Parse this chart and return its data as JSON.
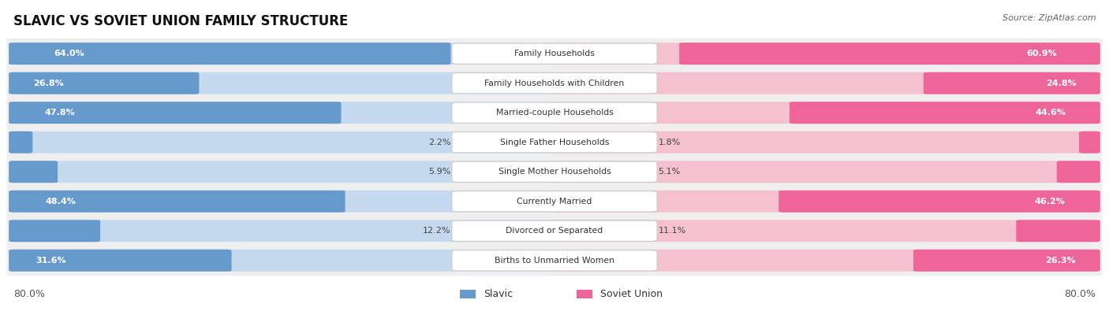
{
  "title": "SLAVIC VS SOVIET UNION FAMILY STRUCTURE",
  "source": "Source: ZipAtlas.com",
  "categories": [
    "Family Households",
    "Family Households with Children",
    "Married-couple Households",
    "Single Father Households",
    "Single Mother Households",
    "Currently Married",
    "Divorced or Separated",
    "Births to Unmarried Women"
  ],
  "slavic_values": [
    64.0,
    26.8,
    47.8,
    2.2,
    5.9,
    48.4,
    12.2,
    31.6
  ],
  "soviet_values": [
    60.9,
    24.8,
    44.6,
    1.8,
    5.1,
    46.2,
    11.1,
    26.3
  ],
  "slavic_color": "#6699cc",
  "soviet_color": "#ee6699",
  "slavic_light": "#c5d9ef",
  "soviet_light": "#f5c0d0",
  "axis_max": 80.0,
  "title_fontsize": 12,
  "source_fontsize": 8,
  "label_fontsize": 7.8,
  "pct_fontsize": 8,
  "legend_fontsize": 9
}
